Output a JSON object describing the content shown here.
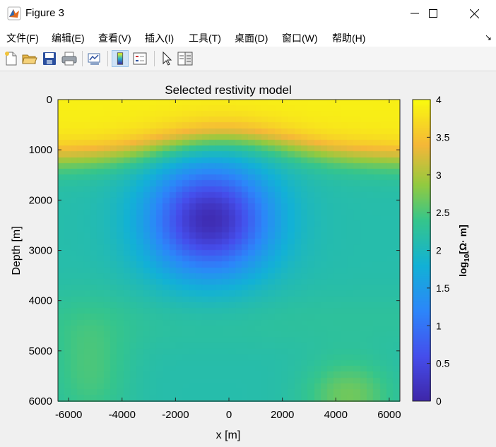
{
  "window": {
    "title": "Figure 3",
    "controls": [
      "minimize",
      "maximize",
      "close"
    ]
  },
  "menu": {
    "items": [
      "文件(F)",
      "编辑(E)",
      "查看(V)",
      "插入(I)",
      "工具(T)",
      "桌面(D)",
      "窗口(W)",
      "帮助(H)"
    ]
  },
  "toolbar": {
    "icons": [
      "new-figure-icon",
      "open-file-icon",
      "save-icon",
      "print-icon",
      "link-plot-icon",
      "colorbar-toggle-icon",
      "legend-toggle-icon",
      "pointer-icon",
      "property-editor-icon"
    ]
  },
  "chart_data": {
    "type": "heatmap",
    "title": "Selected restivity model",
    "xlabel": "x [m]",
    "ylabel": "Depth [m]",
    "xlim": [
      -6400,
      6400
    ],
    "ylim": [
      6000,
      0
    ],
    "x_ticks": [
      "-6000",
      "-4000",
      "-2000",
      "0",
      "2000",
      "4000",
      "6000"
    ],
    "y_ticks": [
      "0",
      "1000",
      "2000",
      "3000",
      "4000",
      "5000",
      "6000"
    ],
    "colorbar": {
      "label_base": "log",
      "label_sub": "10",
      "label_rest": "[Ω· m]",
      "range": [
        0,
        4
      ],
      "ticks": [
        "0",
        "0.5",
        "1",
        "1.5",
        "2",
        "2.5",
        "3",
        "3.5",
        "4"
      ],
      "colormap": "parula"
    },
    "field_description": "High values (~3.5-4) near surface (depth < 1000 m), low-resistivity anomaly (~0.2) centered near x=-700 m, depth 2400 m; moderate values (~2-2.5) at depth; higher (~3) near x=4500 m, depth 5800 m",
    "anomaly": {
      "x": -700,
      "depth": 2400,
      "value": 0.2
    }
  }
}
